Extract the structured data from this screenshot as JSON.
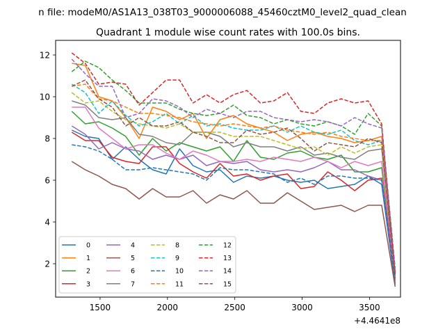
{
  "suptitle": "n file: modeM0/AS1A13_038T03_9000006088_45460cztM0_level2_quad_clean",
  "chart_data": {
    "type": "line",
    "title": "Quadrant 1 module wise count rates with 100.0s bins.",
    "xlabel": "",
    "ylabel": "",
    "x_offset_label": "+4.4641e8",
    "xlim": [
      1170,
      3730
    ],
    "ylim": [
      0.4,
      12.7
    ],
    "xticks": [
      1500,
      2000,
      2500,
      3000,
      3500
    ],
    "yticks": [
      2,
      4,
      6,
      8,
      10,
      12
    ],
    "grid": false,
    "legend_position": "lower-left",
    "x": [
      1290,
      1390,
      1490,
      1590,
      1690,
      1790,
      1890,
      1990,
      2090,
      2190,
      2290,
      2390,
      2490,
      2590,
      2690,
      2790,
      2890,
      2990,
      3090,
      3190,
      3290,
      3390,
      3490,
      3590,
      3690
    ],
    "series": [
      {
        "name": "0",
        "color": "#1f77b4",
        "style": "solid",
        "values": [
          8.4,
          8.1,
          8.0,
          7.0,
          7.6,
          7.0,
          6.5,
          6.3,
          7.5,
          6.7,
          6.4,
          6.5,
          5.9,
          6.2,
          6.1,
          6.2,
          6.0,
          5.9,
          6.0,
          5.6,
          5.7,
          5.8,
          6.2,
          5.8,
          1.0
        ]
      },
      {
        "name": "1",
        "color": "#ff7f0e",
        "style": "solid",
        "values": [
          11.6,
          11.5,
          10.0,
          9.8,
          9.0,
          8.0,
          9.5,
          9.3,
          8.9,
          9.2,
          8.0,
          8.9,
          9.1,
          8.7,
          8.5,
          8.3,
          7.9,
          8.2,
          8.3,
          8.1,
          8.0,
          7.8,
          7.9,
          8.1,
          1.2
        ]
      },
      {
        "name": "2",
        "color": "#2ca02c",
        "style": "solid",
        "values": [
          9.3,
          8.7,
          8.8,
          8.5,
          8.1,
          7.2,
          8.0,
          7.4,
          7.8,
          7.6,
          7.4,
          7.6,
          6.9,
          7.9,
          7.1,
          7.0,
          7.3,
          7.4,
          7.1,
          7.0,
          7.2,
          6.4,
          6.4,
          6.6,
          1.5
        ]
      },
      {
        "name": "3",
        "color": "#d62728",
        "style": "solid",
        "values": [
          8.3,
          7.9,
          7.9,
          7.1,
          6.9,
          6.8,
          7.6,
          7.6,
          6.8,
          6.4,
          6.1,
          6.8,
          6.2,
          6.3,
          6.0,
          6.2,
          6.3,
          5.6,
          5.7,
          6.4,
          6.0,
          5.5,
          6.0,
          6.1,
          1.3
        ]
      },
      {
        "name": "4",
        "color": "#9467bd",
        "style": "solid",
        "values": [
          8.6,
          8.2,
          7.5,
          7.8,
          7.5,
          7.4,
          7.0,
          7.2,
          7.0,
          7.2,
          6.7,
          6.9,
          6.8,
          6.9,
          6.5,
          6.4,
          6.5,
          6.4,
          6.6,
          6.9,
          6.5,
          6.5,
          6.2,
          6.0,
          1.1
        ]
      },
      {
        "name": "5",
        "color": "#8c564b",
        "style": "solid",
        "values": [
          6.9,
          6.5,
          6.2,
          5.8,
          5.6,
          5.1,
          5.6,
          5.2,
          5.2,
          5.5,
          4.9,
          5.3,
          5.1,
          5.5,
          4.9,
          4.9,
          5.4,
          5.0,
          4.6,
          4.7,
          4.8,
          4.5,
          4.8,
          4.8,
          0.9
        ]
      },
      {
        "name": "6",
        "color": "#e377c2",
        "style": "solid",
        "values": [
          9.5,
          9.5,
          8.5,
          8.0,
          7.5,
          7.7,
          7.7,
          7.3,
          7.0,
          7.4,
          7.2,
          6.9,
          6.9,
          7.0,
          6.9,
          7.1,
          7.0,
          6.9,
          7.1,
          6.9,
          6.6,
          6.9,
          6.7,
          6.9,
          1.4
        ]
      },
      {
        "name": "7",
        "color": "#7f7f7f",
        "style": "solid",
        "values": [
          9.8,
          9.6,
          9.0,
          8.9,
          9.0,
          8.2,
          8.1,
          7.8,
          7.7,
          8.3,
          8.3,
          8.1,
          7.6,
          7.8,
          7.6,
          7.6,
          7.4,
          7.6,
          7.2,
          7.3,
          7.1,
          7.0,
          7.4,
          7.5,
          1.6
        ]
      },
      {
        "name": "8",
        "color": "#bcbd22",
        "style": "dashed",
        "values": [
          10.2,
          9.7,
          9.8,
          9.3,
          8.9,
          8.7,
          8.6,
          8.5,
          8.7,
          8.3,
          8.3,
          8.3,
          8.1,
          8.1,
          8.1,
          7.9,
          7.7,
          7.5,
          7.6,
          7.2,
          7.6,
          7.3,
          7.6,
          7.7,
          1.3
        ]
      },
      {
        "name": "9",
        "color": "#17becf",
        "style": "dashed",
        "values": [
          10.6,
          10.2,
          9.2,
          9.8,
          9.1,
          8.6,
          8.8,
          9.2,
          8.7,
          9.1,
          8.6,
          8.7,
          8.5,
          8.4,
          8.4,
          8.6,
          8.3,
          8.6,
          8.3,
          8.2,
          8.4,
          7.9,
          7.7,
          7.9,
          1.4
        ]
      },
      {
        "name": "10",
        "color": "#1f77b4",
        "style": "dashed",
        "values": [
          7.7,
          7.6,
          7.4,
          7.0,
          6.5,
          6.5,
          6.6,
          6.5,
          6.4,
          6.3,
          6.0,
          6.6,
          6.5,
          6.5,
          6.4,
          6.3,
          5.9,
          6.1,
          5.8,
          6.2,
          6.2,
          6.1,
          6.1,
          6.0,
          1.1
        ]
      },
      {
        "name": "11",
        "color": "#ff7f0e",
        "style": "dashed",
        "values": [
          10.5,
          10.6,
          9.9,
          9.8,
          9.5,
          9.2,
          9.2,
          9.1,
          9.0,
          8.8,
          8.7,
          8.6,
          8.7,
          8.6,
          8.5,
          8.6,
          8.4,
          8.3,
          8.2,
          8.3,
          8.1,
          8.0,
          7.9,
          7.9,
          1.6
        ]
      },
      {
        "name": "12",
        "color": "#2ca02c",
        "style": "dashed",
        "values": [
          11.2,
          11.7,
          11.4,
          10.8,
          10.3,
          9.7,
          9.7,
          9.7,
          9.4,
          9.2,
          9.1,
          9.2,
          9.6,
          9.1,
          9.0,
          8.7,
          8.9,
          8.7,
          8.6,
          8.8,
          8.6,
          8.2,
          9.2,
          8.6,
          1.8
        ]
      },
      {
        "name": "13",
        "color": "#d62728",
        "style": "dashed",
        "values": [
          12.1,
          11.6,
          10.6,
          10.7,
          10.6,
          9.6,
          10.2,
          10.8,
          10.8,
          9.7,
          10.1,
          9.7,
          10.1,
          10.3,
          9.7,
          9.8,
          10.2,
          9.3,
          9.2,
          9.7,
          9.9,
          9.7,
          9.8,
          8.7,
          1.5
        ]
      },
      {
        "name": "14",
        "color": "#9467bd",
        "style": "dashed",
        "values": [
          11.8,
          11.1,
          10.5,
          10.5,
          9.0,
          9.2,
          9.9,
          9.8,
          9.5,
          9.0,
          9.4,
          9.2,
          9.0,
          9.3,
          9.3,
          9.0,
          8.9,
          8.8,
          8.9,
          8.8,
          8.6,
          9.0,
          8.7,
          8.5,
          1.7
        ]
      },
      {
        "name": "15",
        "color": "#8c564b",
        "style": "dashed",
        "values": [
          10.5,
          10.8,
          9.9,
          9.5,
          8.6,
          9.0,
          8.6,
          8.6,
          8.8,
          8.3,
          8.1,
          7.8,
          7.8,
          8.4,
          8.2,
          8.3,
          8.5,
          8.0,
          7.4,
          7.8,
          7.7,
          7.6,
          8.0,
          7.8,
          1.3
        ]
      }
    ]
  }
}
